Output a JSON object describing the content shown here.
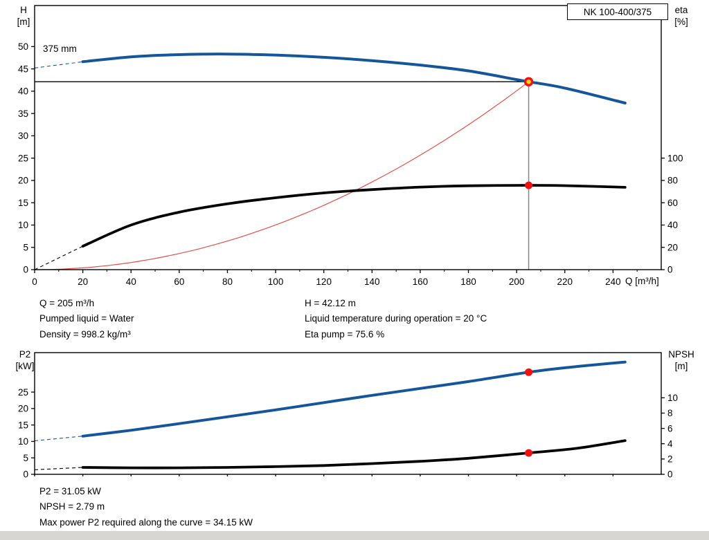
{
  "window": {
    "pump_name": "NK 100-400/375"
  },
  "labels": {
    "impeller": "375 mm",
    "h_axis": [
      "H",
      "[m]"
    ],
    "eta_axis": [
      "eta",
      "[%]"
    ],
    "q_axis": "Q [m³/h]",
    "p2_axis": [
      "P2",
      "[kW]"
    ],
    "npsh_axis": [
      "NPSH",
      "[m]"
    ]
  },
  "operating_info": {
    "q": "Q = 205 m³/h",
    "pumped_liquid": "Pumped liquid = Water",
    "density": "Density = 998.2 kg/m³",
    "h": "H = 42.12 m",
    "liquid_temp": "Liquid temperature during operation = 20 °C",
    "eta_pump": "Eta pump = 75.6 %"
  },
  "result_info": {
    "p2": "P2 = 31.05 kW",
    "npsh": "NPSH = 2.79 m",
    "max_power": "Max power P2 required along the curve = 34.15 kW"
  },
  "colors": {
    "curve_blue": "#15569a",
    "curve_black": "#000000",
    "system_red": "#e05048",
    "marker_red": "#ee1212",
    "marker_yellow": "#ffd300",
    "duty_line_gray": "#858585",
    "frame": "#000000"
  },
  "chart_data": [
    {
      "type": "line",
      "name": "qh-efficiency-chart",
      "x": {
        "label": "Q [m³/h]",
        "min": 0,
        "max": 260,
        "ticks": [
          0,
          20,
          40,
          60,
          80,
          100,
          120,
          140,
          160,
          180,
          200,
          220,
          240
        ],
        "minor_step": 10
      },
      "y_left": {
        "label": "H [m]",
        "min": 0,
        "max": 59.2,
        "ticks": [
          0,
          5,
          10,
          15,
          20,
          25,
          30,
          35,
          40,
          45,
          50
        ]
      },
      "y_right": {
        "label": "eta [%]",
        "min": 0,
        "max": 236.8,
        "ticks": [
          0,
          20,
          40,
          60,
          80,
          100
        ]
      },
      "series": [
        {
          "name": "head-curve-375mm",
          "axis": "left",
          "color_key": "curve_blue",
          "width": 4,
          "points": [
            [
              20,
              46.6
            ],
            [
              40,
              47.7
            ],
            [
              60,
              48.2
            ],
            [
              80,
              48.32
            ],
            [
              100,
              48.1
            ],
            [
              120,
              47.6
            ],
            [
              140,
              46.85
            ],
            [
              160,
              45.85
            ],
            [
              180,
              44.55
            ],
            [
              200,
              42.6
            ],
            [
              205,
              42.12
            ],
            [
              220,
              40.7
            ],
            [
              245,
              37.35
            ]
          ],
          "dashed_lead": [
            [
              0,
              45.2
            ],
            [
              20,
              46.6
            ]
          ]
        },
        {
          "name": "efficiency-curve",
          "axis": "right",
          "color_key": "curve_black",
          "width": 3.8,
          "points": [
            [
              20,
              21
            ],
            [
              40,
              40
            ],
            [
              60,
              51.5
            ],
            [
              80,
              59
            ],
            [
              100,
              64.5
            ],
            [
              120,
              68.8
            ],
            [
              140,
              71.8
            ],
            [
              160,
              74
            ],
            [
              180,
              75.2
            ],
            [
              205,
              75.6
            ],
            [
              220,
              75.3
            ],
            [
              245,
              73.8
            ]
          ],
          "dashed_lead": [
            [
              0,
              0
            ],
            [
              20,
              21
            ]
          ]
        }
      ],
      "system_curve": {
        "q_start": 0,
        "q_end": 205,
        "exponent": 2
      },
      "duty_point": {
        "q": 205,
        "h": 42.12,
        "eta": 75.6
      }
    },
    {
      "type": "line",
      "name": "p2-npsh-chart",
      "x": {
        "label": "Q [m³/h]",
        "min": 0,
        "max": 260,
        "ticks": [
          0,
          20,
          40,
          60,
          80,
          100,
          120,
          140,
          160,
          180,
          200,
          220,
          240
        ]
      },
      "y_left": {
        "label": "P2 [kW]",
        "min": 0,
        "max": 37,
        "ticks": [
          0,
          5,
          10,
          15,
          20,
          25
        ]
      },
      "y_right": {
        "label": "NPSH [m]",
        "min": 0,
        "max": 15.9,
        "ticks": [
          0,
          2,
          4,
          6,
          8,
          10
        ]
      },
      "duty_q": 205,
      "series": [
        {
          "name": "p2-curve",
          "axis": "left",
          "color_key": "curve_blue",
          "width": 4,
          "duty_value": 31.05,
          "points": [
            [
              20,
              11.6
            ],
            [
              40,
              13.4
            ],
            [
              60,
              15.4
            ],
            [
              80,
              17.5
            ],
            [
              100,
              19.6
            ],
            [
              120,
              21.8
            ],
            [
              140,
              24
            ],
            [
              160,
              26.1
            ],
            [
              180,
              28.2
            ],
            [
              205,
              31.05
            ],
            [
              220,
              32.4
            ],
            [
              245,
              34.15
            ]
          ],
          "dashed_lead": [
            [
              0,
              10.2
            ],
            [
              20,
              11.6
            ]
          ]
        },
        {
          "name": "npsh-curve",
          "axis": "right",
          "color_key": "curve_black",
          "width": 3.8,
          "duty_value": 2.79,
          "points": [
            [
              20,
              0.9
            ],
            [
              40,
              0.85
            ],
            [
              60,
              0.85
            ],
            [
              80,
              0.9
            ],
            [
              100,
              1.0
            ],
            [
              120,
              1.15
            ],
            [
              140,
              1.4
            ],
            [
              160,
              1.7
            ],
            [
              180,
              2.1
            ],
            [
              205,
              2.79
            ],
            [
              225,
              3.4
            ],
            [
              245,
              4.4
            ]
          ],
          "dashed_lead": [
            [
              0,
              0.6
            ],
            [
              20,
              0.9
            ]
          ]
        }
      ]
    }
  ]
}
